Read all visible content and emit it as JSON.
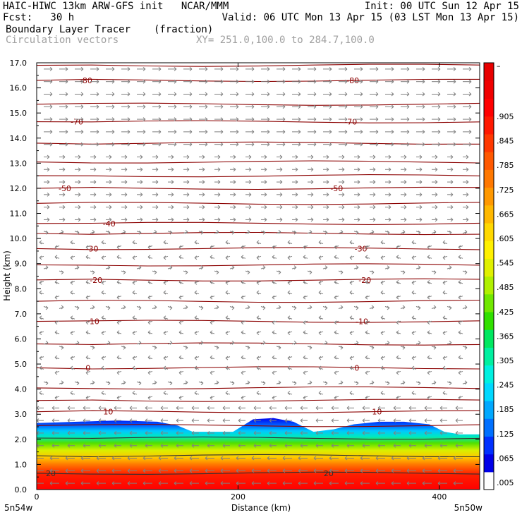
{
  "header": {
    "line1_left": "HAIC-HIWC 13km ARW-GFS init   NCAR/MMM",
    "line1_right": "Init: 00 UTC Sun 12 Apr 15",
    "line2_left": "Fcst:   30 h",
    "line2_right": "Valid: 06 UTC Mon 13 Apr 15 (03 LST Mon 13 Apr 15)",
    "line3_left": "Boundary Layer Tracer",
    "line3_mid": "(fraction)",
    "line4_left": "Circulation vectors",
    "line4_mid": "XY= 251.0,100.0 to 284.7,100.0"
  },
  "chart_data": {
    "type": "heatmap",
    "title": "Boundary Layer Tracer (fraction)",
    "xlabel": "Distance (km)",
    "ylabel": "Height (km)",
    "xlim": [
      0,
      440
    ],
    "ylim": [
      0,
      17
    ],
    "x_ticks": [
      0,
      200,
      400
    ],
    "y_ticks": [
      "0.0",
      "1.0",
      "2.0",
      "3.0",
      "4.0",
      "5.0",
      "6.0",
      "7.0",
      "8.0",
      "9.0",
      "10.0",
      "11.0",
      "12.0",
      "13.0",
      "14.0",
      "15.0",
      "16.0",
      "17.0"
    ],
    "x_end_labels": {
      "left": "5n54w",
      "right": "5n50w"
    },
    "colorbar": {
      "labels": [
        ".005",
        ".065",
        ".125",
        ".185",
        ".245",
        ".305",
        ".365",
        ".425",
        ".485",
        ".545",
        ".605",
        ".665",
        ".725",
        ".785",
        ".845",
        ".905",
        "–"
      ],
      "colors": [
        "#ffffff",
        "#0000f0",
        "#0050ff",
        "#00b4ff",
        "#00f0ff",
        "#00ffa0",
        "#00e040",
        "#40e000",
        "#a0f000",
        "#e0f000",
        "#fff000",
        "#ffd000",
        "#ffb000",
        "#ff8c00",
        "#ff6400",
        "#ff3000",
        "#f00000",
        "#e00000",
        "#ff0000"
      ]
    },
    "tracer_band": {
      "top_profile_x": [
        0,
        40,
        80,
        120,
        140,
        155,
        175,
        195,
        215,
        235,
        255,
        275,
        295,
        315,
        340,
        365,
        390,
        405,
        420,
        440
      ],
      "top_profile_km": [
        2.65,
        2.7,
        2.75,
        2.7,
        2.55,
        2.3,
        2.3,
        2.3,
        2.8,
        2.85,
        2.7,
        2.3,
        2.4,
        2.6,
        2.7,
        2.7,
        2.6,
        2.3,
        2.2,
        2.2
      ]
    },
    "temperature_contours": [
      {
        "level": 20,
        "km": 0.65,
        "label_x": [
          14,
          290
        ]
      },
      {
        "level": 10,
        "km": 3.1,
        "label_x": [
          71,
          338
        ]
      },
      {
        "level": 0,
        "km": 4.85,
        "label_x": [
          51,
          318
        ]
      },
      {
        "level": -10,
        "km": 6.7,
        "label_x": [
          56,
          323
        ]
      },
      {
        "level": -20,
        "km": 8.35,
        "label_x": [
          59,
          326
        ]
      },
      {
        "level": -30,
        "km": 9.6,
        "label_x": [
          55,
          322
        ]
      },
      {
        "level": -40,
        "km": 10.6,
        "label_x": [
          72,
          null
        ]
      },
      {
        "level": -50,
        "km": 12.0,
        "label_x": [
          28,
          298
        ]
      },
      {
        "level": -70,
        "km": 14.65,
        "label_x": [
          40,
          312
        ]
      },
      {
        "level": -80,
        "km": 16.3,
        "label_x": [
          49,
          314
        ]
      }
    ],
    "contour_levels_km": [
      0.65,
      1.35,
      2.05,
      2.55,
      3.1,
      3.55,
      4.05,
      4.85,
      5.8,
      6.7,
      7.5,
      8.35,
      8.95,
      9.6,
      10.2,
      10.6,
      11.4,
      12.0,
      12.5,
      13.05,
      13.8,
      14.65,
      15.35,
      16.3,
      16.9
    ],
    "vectors": {
      "layers_km": [
        {
          "from": 0,
          "to": 3.3,
          "direction": "westward",
          "color": "#808080"
        },
        {
          "from": 3.3,
          "to": 10.5,
          "direction": "weak/variable",
          "color": "#808080"
        },
        {
          "from": 10.5,
          "to": 17,
          "direction": "eastward",
          "color": "#808080"
        }
      ]
    }
  }
}
